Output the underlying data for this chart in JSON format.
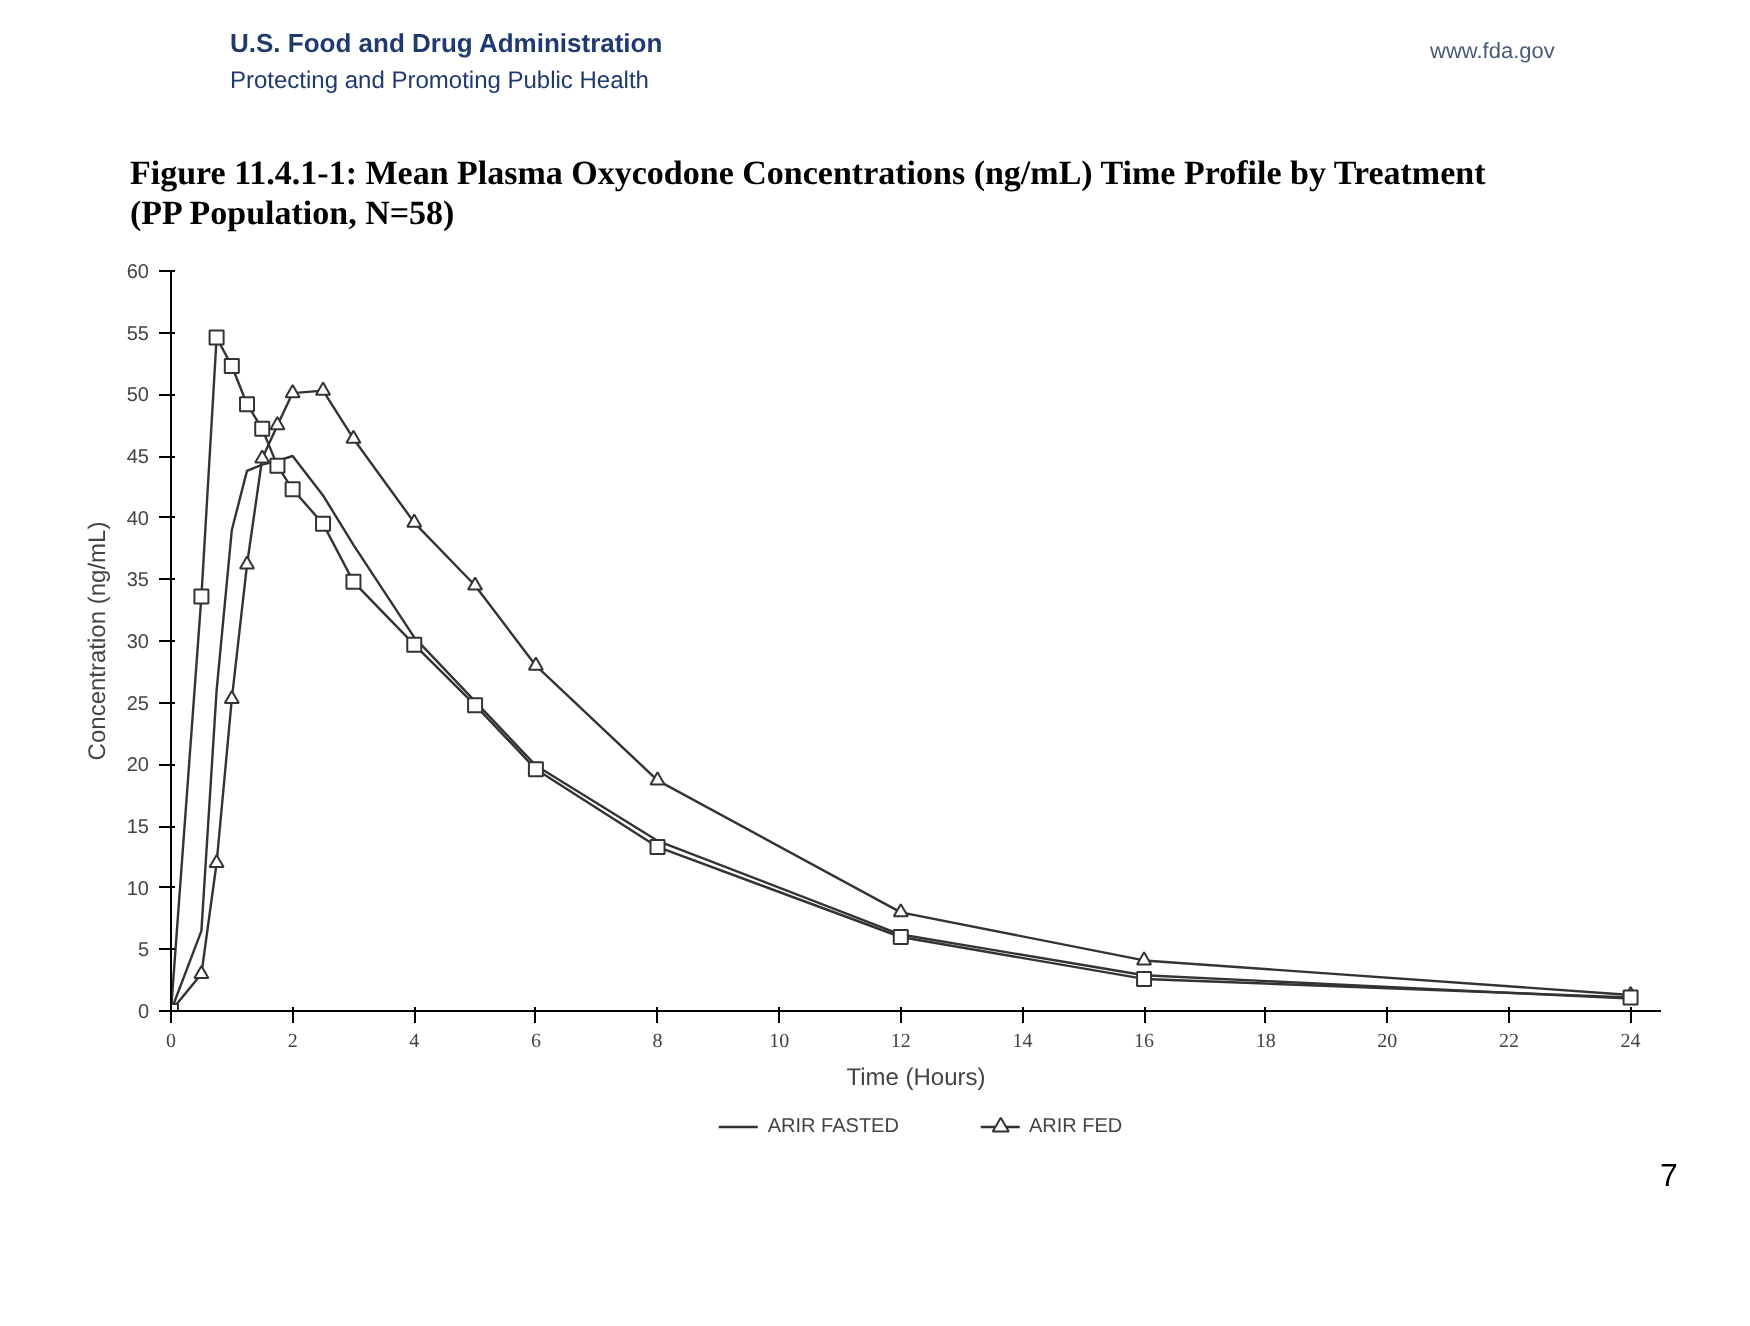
{
  "chart_data": {
    "type": "line",
    "title": "Figure 11.4.1-1: Mean Plasma Oxycodone Concentrations (ng/mL) Time Profile by Treatment (PP Population, N=58)",
    "xlabel": "Time (Hours)",
    "ylabel": "Concentration (ng/mL)",
    "x": [
      0,
      0.5,
      0.75,
      1,
      1.25,
      1.5,
      1.75,
      2,
      2.5,
      3,
      4,
      5,
      6,
      8,
      12,
      16,
      24
    ],
    "series": [
      {
        "name": "ARIR FASTED",
        "color": "#333333",
        "marker": "none",
        "values": [
          0,
          6.5,
          26,
          39,
          43.8,
          44.3,
          44.6,
          45,
          41.8,
          37.8,
          30.3,
          25.1,
          19.9,
          13.8,
          6.2,
          2.9,
          1.0
        ]
      },
      {
        "name": "ARIR FED",
        "color": "#333333",
        "marker": "triangle",
        "values": [
          0,
          3,
          12.0,
          25.3,
          36.2,
          44.8,
          47.5,
          50.1,
          50.3,
          46.4,
          39.6,
          34.5,
          28.0,
          18.7,
          8.0,
          4.1,
          1.3
        ]
      },
      {
        "color": "#333333",
        "marker": "square",
        "values": [
          0,
          33.6,
          54.6,
          52.3,
          49.2,
          47.2,
          44.2,
          42.3,
          39.5,
          34.8,
          29.7,
          24.8,
          19.6,
          13.3,
          6.0,
          2.6,
          1.1
        ]
      }
    ],
    "xlim": [
      0,
      24.5
    ],
    "xticks": [
      0,
      2,
      4,
      6,
      8,
      10,
      12,
      14,
      16,
      18,
      20,
      22,
      24
    ],
    "ylim": [
      0,
      60
    ],
    "yticks": [
      0,
      5,
      10,
      15,
      20,
      25,
      30,
      35,
      40,
      45,
      50,
      55,
      60
    ],
    "grid": false,
    "legend": "bottom",
    "line_style": "solid",
    "annotations": [
      "U.S. Food and Drug Administration",
      "Protecting and Promoting Public Health",
      "www.fda.gov",
      "7"
    ]
  }
}
